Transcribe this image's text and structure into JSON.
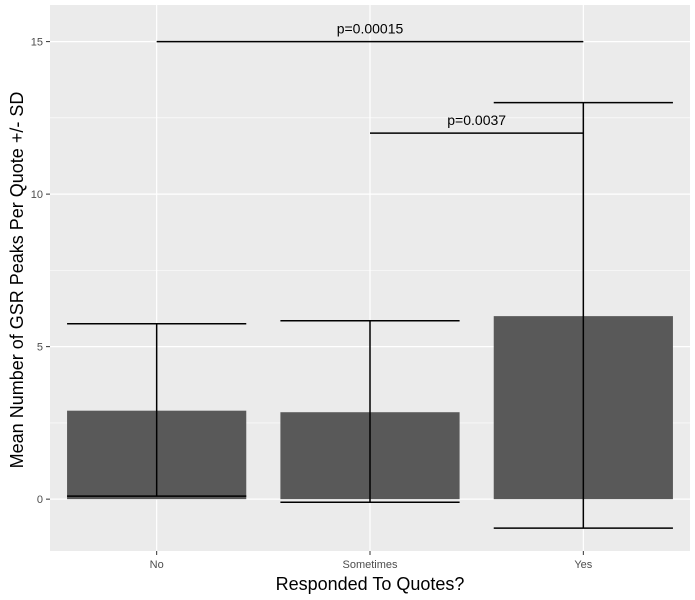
{
  "chart_data": {
    "type": "bar",
    "xlabel": "Responded To Quotes?",
    "ylabel": "Mean Number of GSR Peaks Per Quote +/- SD",
    "categories": [
      "No",
      "Sometimes",
      "Yes"
    ],
    "values": [
      2.9,
      2.85,
      6.0
    ],
    "error_low": [
      0.1,
      -0.1,
      -0.95
    ],
    "error_high": [
      5.75,
      5.85,
      13.0
    ],
    "ylim": [
      -1.7,
      16.2
    ],
    "yticks": [
      0,
      5,
      10,
      15
    ],
    "ytick_labels": [
      "0",
      "5",
      "10",
      "15"
    ],
    "grid": true,
    "legend": "none",
    "annotations": [
      {
        "text": "p=0.00015",
        "from": "No",
        "to": "Yes",
        "y": 15
      },
      {
        "text": "p=0.0037",
        "from": "Sometimes",
        "to": "Yes",
        "y": 12
      }
    ],
    "colors": {
      "panel_bg": "#ebebeb",
      "bar_fill": "#595959",
      "grid_major": "#ffffff",
      "error_bar": "#000000"
    }
  }
}
